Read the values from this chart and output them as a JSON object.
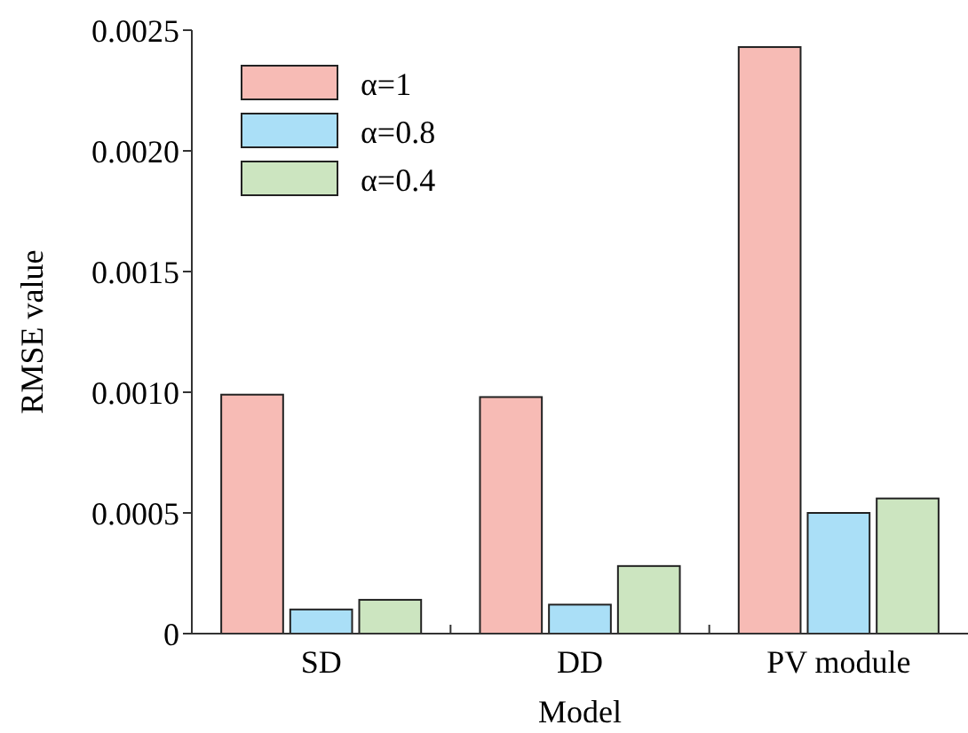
{
  "chart_data": {
    "type": "bar",
    "xlabel": "Model",
    "ylabel": "RMSE value",
    "categories": [
      "SD",
      "DD",
      "PV module"
    ],
    "series": [
      {
        "name": "α=1",
        "color": "#f7bbb5",
        "values": [
          0.00099,
          0.00098,
          0.00243
        ]
      },
      {
        "name": "α=0.8",
        "color": "#aadff7",
        "values": [
          0.0001,
          0.00012,
          0.0005
        ]
      },
      {
        "name": "α=0.4",
        "color": "#cce5c0",
        "values": [
          0.00014,
          0.00028,
          0.00056
        ]
      }
    ],
    "ylim": [
      0,
      0.0025
    ],
    "yticks": [
      0,
      0.0005,
      {
        "value": 0.001,
        "label": "0.0010"
      },
      0.0015,
      {
        "value": 0.002,
        "label": "0.0020"
      },
      0.0025
    ],
    "legend": "top left",
    "grid": false
  }
}
